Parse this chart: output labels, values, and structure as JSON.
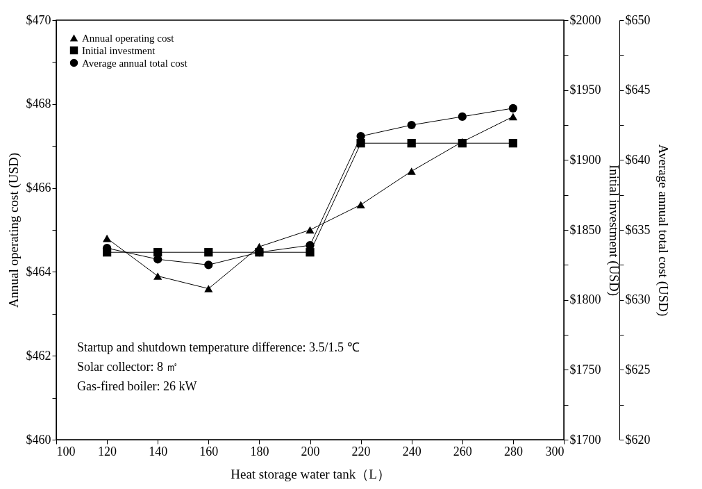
{
  "chart_data": {
    "type": "line",
    "xlabel": "Heat storage water tank（L）",
    "ylabel": "Annual operating cost (USD)",
    "y2label": "Initial investment (USD)",
    "y3label": "Average annual total cost (USD)",
    "x": [
      120,
      140,
      160,
      180,
      200,
      220,
      240,
      260,
      280
    ],
    "series": [
      {
        "name": "Annual operating cost",
        "color": "#000000",
        "marker": "triangle",
        "values": [
          464.8,
          463.9,
          463.6,
          464.6,
          465.0,
          465.6,
          466.4,
          467.1,
          467.7
        ]
      },
      {
        "name": "Initial investment",
        "color": "#000000",
        "marker": "square",
        "axis": "y2",
        "values": [
          1834,
          1834,
          1834,
          1834,
          1834,
          1912,
          1912,
          1912,
          1912
        ]
      },
      {
        "name": "Average annual total cost",
        "color": "#000000",
        "marker": "circle",
        "axis": "y3",
        "values": [
          633.7,
          632.9,
          632.5,
          633.4,
          633.9,
          641.7,
          642.5,
          643.1,
          643.7
        ]
      }
    ],
    "xlim": [
      100,
      300
    ],
    "xticks": [
      100,
      120,
      140,
      160,
      180,
      200,
      220,
      240,
      260,
      280,
      300
    ],
    "ylim": [
      460,
      470
    ],
    "yticks": [
      {
        "value": 460,
        "label": "$460"
      },
      {
        "value": 461,
        "label": null
      },
      {
        "value": 462,
        "label": "$462"
      },
      {
        "value": 463,
        "label": null
      },
      {
        "value": 464,
        "label": "$464"
      },
      {
        "value": 465,
        "label": null
      },
      {
        "value": 466,
        "label": "$466"
      },
      {
        "value": 467,
        "label": null
      },
      {
        "value": 468,
        "label": "$468"
      },
      {
        "value": 469,
        "label": null
      },
      {
        "value": 470,
        "label": "$470"
      }
    ],
    "y2lim": [
      1700,
      2000
    ],
    "y2ticks": [
      {
        "value": 1700,
        "label": "$1700"
      },
      {
        "value": 1725,
        "label": null
      },
      {
        "value": 1750,
        "label": "$1750"
      },
      {
        "value": 1775,
        "label": null
      },
      {
        "value": 1800,
        "label": "$1800"
      },
      {
        "value": 1825,
        "label": null
      },
      {
        "value": 1850,
        "label": "$1850"
      },
      {
        "value": 1875,
        "label": null
      },
      {
        "value": 1900,
        "label": "$1900"
      },
      {
        "value": 1925,
        "label": null
      },
      {
        "value": 1950,
        "label": "$1950"
      },
      {
        "value": 1975,
        "label": null
      },
      {
        "value": 2000,
        "label": "$2000"
      }
    ],
    "y3lim": [
      620,
      650
    ],
    "y3ticks": [
      {
        "value": 620,
        "label": "$620"
      },
      {
        "value": 622.5,
        "label": null
      },
      {
        "value": 625,
        "label": "$625"
      },
      {
        "value": 627.5,
        "label": null
      },
      {
        "value": 630,
        "label": "$630"
      },
      {
        "value": 632.5,
        "label": null
      },
      {
        "value": 635,
        "label": "$635"
      },
      {
        "value": 637.5,
        "label": null
      },
      {
        "value": 640,
        "label": "$640"
      },
      {
        "value": 642.5,
        "label": null
      },
      {
        "value": 645,
        "label": "$645"
      },
      {
        "value": 647.5,
        "label": null
      },
      {
        "value": 650,
        "label": "$650"
      }
    ],
    "annotations": [
      "Startup and shutdown temperature difference: 3.5/1.5 ℃",
      "Solar collector: 8 ㎡",
      "Gas-fired boiler: 26 kW"
    ],
    "grid": false,
    "legend": "top left",
    "line_style": "solid"
  }
}
